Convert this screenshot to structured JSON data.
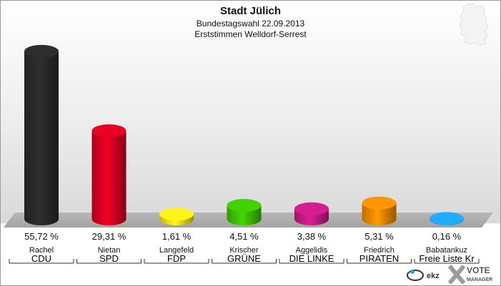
{
  "header": {
    "title": "Stadt Jülich",
    "subtitle": "Bundestagswahl 22.09.2013",
    "subtitle2": "Erststimmen Welldorf-Serrest"
  },
  "branding": {
    "logo_left": "ekz",
    "logo_right_1": "VOTE",
    "logo_right_2": "MANAGER"
  },
  "chart_data": {
    "type": "bar",
    "title": "Stadt Jülich",
    "ylim": [
      0,
      100
    ],
    "grid": false,
    "bars": [
      {
        "candidate": "Rachel",
        "party": "CDU",
        "value": 55.72,
        "label": "55,72 %",
        "color": "#2a2a2a"
      },
      {
        "candidate": "Nietan",
        "party": "SPD",
        "value": 29.31,
        "label": "29,31 %",
        "color": "#d90020"
      },
      {
        "candidate": "Langefeld",
        "party": "FDP",
        "value": 1.61,
        "label": "1,61 %",
        "color": "#f2e11a"
      },
      {
        "candidate": "Krischer",
        "party": "GRÜNE",
        "value": 4.51,
        "label": "4,51 %",
        "color": "#3cc200"
      },
      {
        "candidate": "Aggelidis",
        "party": "DIE LINKE",
        "value": 3.38,
        "label": "3,38 %",
        "color": "#c71c86"
      },
      {
        "candidate": "Friedrich",
        "party": "PIRATEN",
        "value": 5.31,
        "label": "5,31 %",
        "color": "#f28a00"
      },
      {
        "candidate": "Babatankuz",
        "party": "Freie Liste Kr",
        "value": 0.16,
        "label": "0,16 %",
        "color": "#1ea0ff"
      }
    ]
  }
}
